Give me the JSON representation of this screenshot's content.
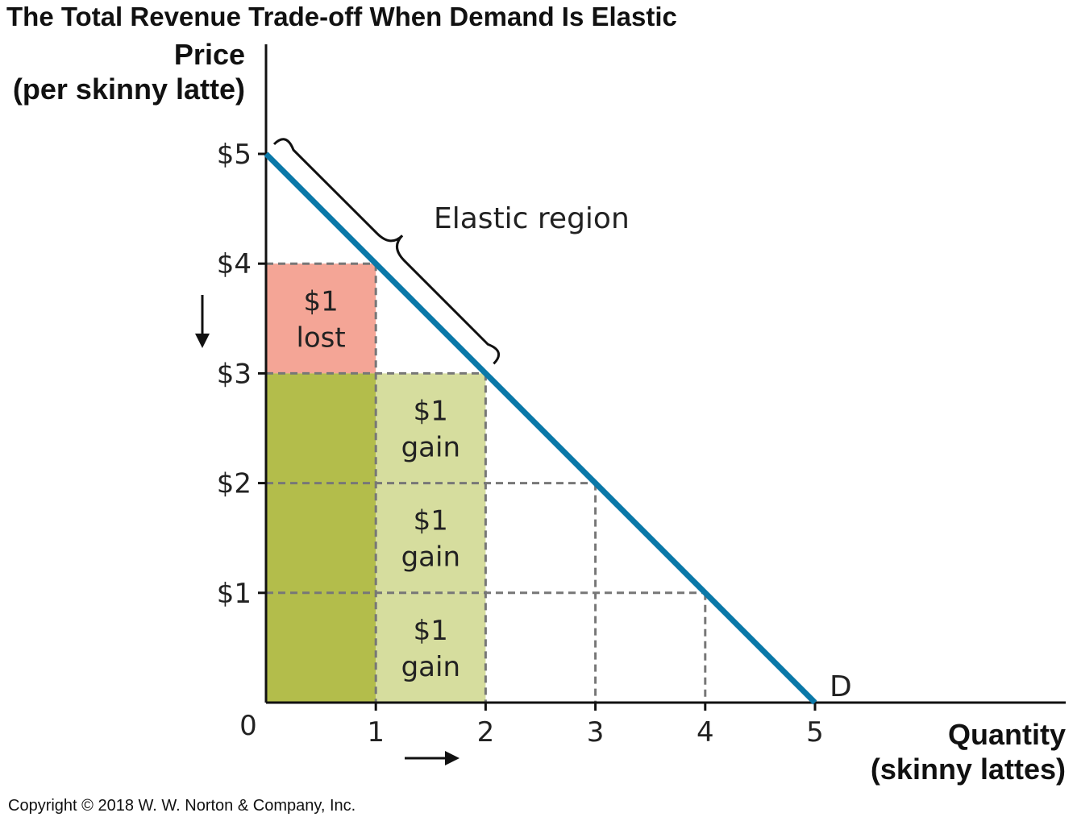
{
  "chart_data": {
    "type": "line",
    "title": "The Total Revenue Trade-off When Demand Is Elastic",
    "ylabel_line1": "Price",
    "ylabel_line2": "(per skinny latte)",
    "xlabel_line1": "Quantity",
    "xlabel_line2": "(skinny lattes)",
    "origin_label": "0",
    "x_ticks": [
      "1",
      "2",
      "3",
      "4",
      "5"
    ],
    "y_ticks": [
      "$1",
      "$2",
      "$3",
      "$4",
      "$5"
    ],
    "xlim": [
      0,
      7.25
    ],
    "ylim": [
      0,
      5
    ],
    "demand_curve": {
      "name": "D",
      "points": [
        [
          0,
          5
        ],
        [
          5,
          0
        ]
      ],
      "color": "#0a78a8"
    },
    "areas": [
      {
        "x": [
          0,
          1
        ],
        "y": [
          3,
          4
        ],
        "color": "#f4a596",
        "label_line1": "$1",
        "label_line2": "lost"
      },
      {
        "x": [
          0,
          1
        ],
        "y": [
          0,
          3
        ],
        "color": "#b3bd4b"
      },
      {
        "x": [
          1,
          2
        ],
        "y": [
          2,
          3
        ],
        "color": "#d6dd9e",
        "label_line1": "$1",
        "label_line2": "gain"
      },
      {
        "x": [
          1,
          2
        ],
        "y": [
          1,
          2
        ],
        "color": "#d6dd9e",
        "label_line1": "$1",
        "label_line2": "gain"
      },
      {
        "x": [
          1,
          2
        ],
        "y": [
          0,
          1
        ],
        "color": "#d6dd9e",
        "label_line1": "$1",
        "label_line2": "gain"
      }
    ],
    "guide_points": [
      [
        1,
        4
      ],
      [
        2,
        3
      ],
      [
        3,
        2
      ],
      [
        4,
        1
      ]
    ],
    "bracket": {
      "from": [
        0,
        5
      ],
      "to": [
        2,
        3
      ],
      "label": "Elastic region"
    },
    "arrows": {
      "price": "down",
      "quantity": "right"
    }
  },
  "copyright": "Copyright © 2018 W. W. Norton & Company, Inc."
}
